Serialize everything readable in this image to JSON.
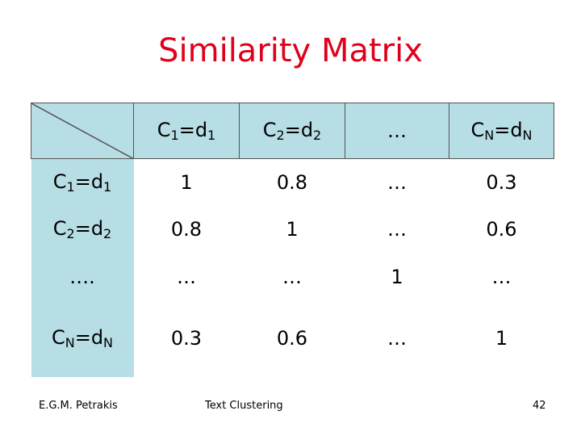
{
  "header": {
    "title": "Similarity Matrix"
  },
  "table": {
    "columns": [
      [
        {
          "text": "C"
        },
        {
          "sub": "1"
        },
        {
          "text": "=d"
        },
        {
          "sub": "1"
        }
      ],
      [
        {
          "text": "C"
        },
        {
          "sub": "2"
        },
        {
          "text": "=d"
        },
        {
          "sub": "2"
        }
      ],
      [
        {
          "text": "…"
        }
      ],
      [
        {
          "text": "C"
        },
        {
          "sub": "N"
        },
        {
          "text": "=d"
        },
        {
          "sub": "N"
        }
      ]
    ],
    "rows": [
      {
        "label": [
          {
            "text": "C"
          },
          {
            "sub": "1"
          },
          {
            "text": "=d"
          },
          {
            "sub": "1"
          }
        ],
        "cells": [
          "1",
          "0.8",
          "…",
          "0.3"
        ]
      },
      {
        "label": [
          {
            "text": "C"
          },
          {
            "sub": "2"
          },
          {
            "text": "=d"
          },
          {
            "sub": "2"
          }
        ],
        "cells": [
          "0.8",
          "1",
          "…",
          "0.6"
        ]
      },
      {
        "label": [
          {
            "text": "…."
          }
        ],
        "cells": [
          "…",
          "…",
          "1",
          "…"
        ]
      },
      {
        "label": [
          {
            "text": "C"
          },
          {
            "sub": "N"
          },
          {
            "text": "=d"
          },
          {
            "sub": "N"
          }
        ],
        "cells": [
          "0.3",
          "0.6",
          "…",
          "1"
        ]
      }
    ]
  },
  "footer": {
    "author": "E.G.M. Petrakis",
    "topic": "Text Clustering",
    "page": "42"
  }
}
